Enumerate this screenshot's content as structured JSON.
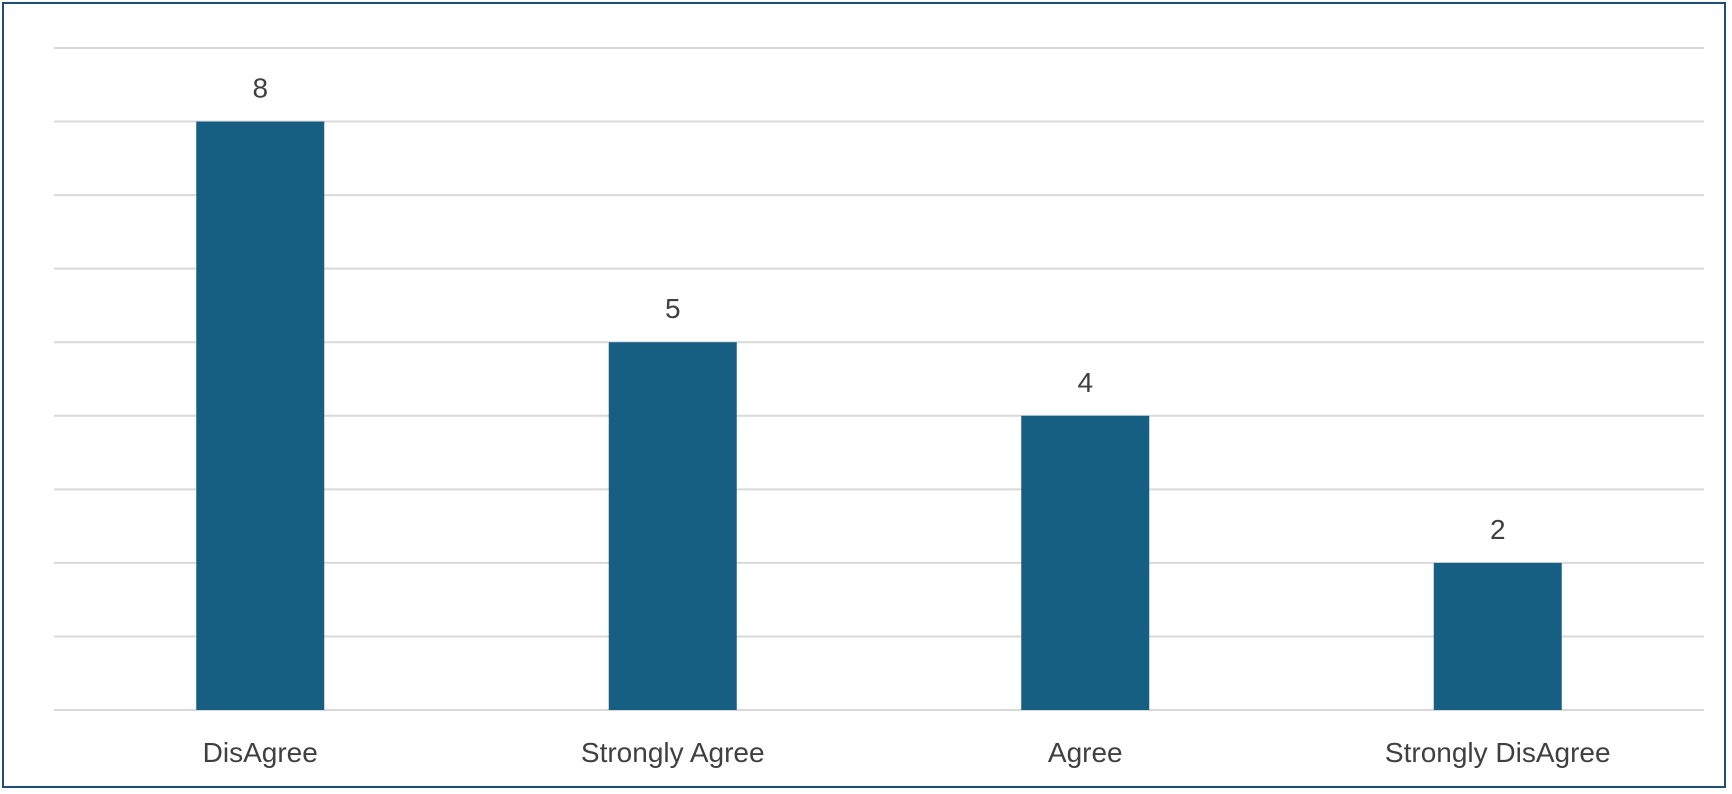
{
  "chart_data": {
    "type": "bar",
    "categories": [
      "DisAgree",
      "Strongly Agree",
      "Agree",
      "Strongly DisAgree"
    ],
    "values": [
      8,
      5,
      4,
      2
    ],
    "ylim": [
      0,
      9
    ],
    "gridlines": true,
    "legend": "none",
    "data_labels": true,
    "colors": {
      "bar": "#175e83",
      "grid": "#d9d9d9",
      "frame": "#1f4e79",
      "text": "#404040"
    }
  }
}
